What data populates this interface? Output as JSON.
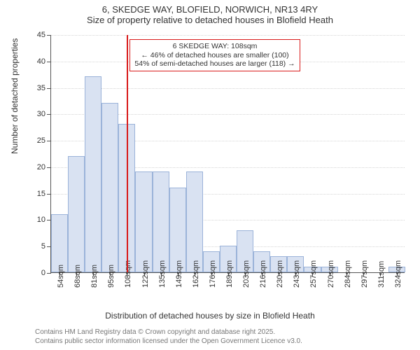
{
  "title": {
    "line1": "6, SKEDGE WAY, BLOFIELD, NORWICH, NR13 4RY",
    "line2": "Size of property relative to detached houses in Blofield Heath"
  },
  "chart": {
    "type": "histogram",
    "ylabel": "Number of detached properties",
    "xlabel": "Distribution of detached houses by size in Blofield Heath",
    "ylim": [
      0,
      45
    ],
    "ytick_step": 5,
    "bar_fill": "#d9e2f2",
    "bar_stroke": "#9bb3d9",
    "grid_color": "#d5d5d5",
    "axis_color": "#555555",
    "marker_color": "#d91a1a",
    "background_color": "#ffffff",
    "tick_fontsize": 11,
    "label_fontsize": 12,
    "title_fontsize": 13,
    "categories": [
      "54sqm",
      "68sqm",
      "81sqm",
      "95sqm",
      "108sqm",
      "122sqm",
      "135sqm",
      "149sqm",
      "162sqm",
      "176sqm",
      "189sqm",
      "203sqm",
      "216sqm",
      "230sqm",
      "243sqm",
      "257sqm",
      "270sqm",
      "284sqm",
      "297sqm",
      "311sqm",
      "324sqm"
    ],
    "values": [
      11,
      22,
      37,
      32,
      28,
      19,
      19,
      16,
      19,
      4,
      5,
      8,
      4,
      3,
      3,
      1,
      1,
      0,
      0,
      0,
      1
    ],
    "marker_index": 4,
    "annotation": {
      "line1": "6 SKEDGE WAY: 108sqm",
      "line2": "← 46% of detached houses are smaller (100)",
      "line3": "54% of semi-detached houses are larger (118) →"
    }
  },
  "footnote": {
    "line1": "Contains HM Land Registry data © Crown copyright and database right 2025.",
    "line2": "Contains public sector information licensed under the Open Government Licence v3.0."
  }
}
